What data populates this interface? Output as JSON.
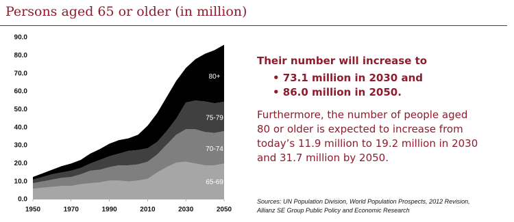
{
  "chart_data": {
    "type": "stacked_area",
    "title": "Persons aged 65 or older (in million)",
    "x": [
      1950,
      1955,
      1960,
      1965,
      1970,
      1975,
      1980,
      1985,
      1990,
      1995,
      2000,
      2005,
      2010,
      2015,
      2020,
      2025,
      2030,
      2035,
      2040,
      2045,
      2050
    ],
    "series": [
      {
        "name": "65-69",
        "color": "#a6a6a6",
        "values": [
          6,
          6.5,
          7,
          7.5,
          7.5,
          8.5,
          9,
          9.5,
          10.5,
          10.5,
          10,
          10.5,
          11.5,
          15,
          18,
          20.5,
          21,
          20,
          19,
          19,
          20
        ]
      },
      {
        "name": "70-74",
        "color": "#7f7f7f",
        "values": [
          3,
          3.5,
          4,
          4.5,
          5,
          5.5,
          7,
          7,
          7.5,
          8.5,
          9,
          9,
          9.5,
          10,
          12.5,
          15.5,
          18,
          19,
          18.5,
          18,
          18
        ]
      },
      {
        "name": "75-79",
        "color": "#404040",
        "values": [
          2,
          2.5,
          3,
          3,
          3.5,
          3.5,
          4,
          5.5,
          6,
          6.5,
          8,
          8,
          7.5,
          7,
          7.5,
          9,
          14.9,
          16,
          17,
          16.5,
          16.3
        ]
      },
      {
        "name": "80+",
        "color": "#000000",
        "values": [
          1.5,
          2,
          2.5,
          3.5,
          4,
          4.5,
          5.5,
          6,
          7,
          7.5,
          7,
          8.5,
          12.5,
          16,
          19,
          21,
          19.2,
          23,
          26.5,
          29.5,
          31.7
        ]
      }
    ],
    "xlim": [
      1950,
      2050
    ],
    "xticks": [
      1950,
      1970,
      1990,
      2010,
      2030,
      2050
    ],
    "ylim": [
      0,
      90
    ],
    "yticks": [
      {
        "value": 0,
        "label": "0.0"
      },
      {
        "value": 10,
        "label": "10.0"
      },
      {
        "value": 20,
        "label": "20.0"
      },
      {
        "value": 30,
        "label": "30.0"
      },
      {
        "value": 40,
        "label": "40.0"
      },
      {
        "value": 50,
        "label": "50.0"
      },
      {
        "value": 60,
        "label": "60.0"
      },
      {
        "value": 70,
        "label": "70.0"
      },
      {
        "value": 80,
        "label": "80.0"
      },
      {
        "value": 90,
        "label": "90.0"
      }
    ]
  },
  "highlight": {
    "heading": "Their number will increase to",
    "bullets": [
      "• 73.1 million in 2030 and",
      "• 86.0 million in 2050."
    ]
  },
  "body": [
    "Furthermore, the number of people aged",
    "80 or older is expected to increase from",
    "today’s 11.9 million to 19.2 million in 2030",
    "and 31.7 million by 2050."
  ],
  "sources": [
    "Sources: UN Population Division, World Population Prospects, 2012 Revision,",
    "Allianz SE Group Public Policy and Economic Research"
  ]
}
